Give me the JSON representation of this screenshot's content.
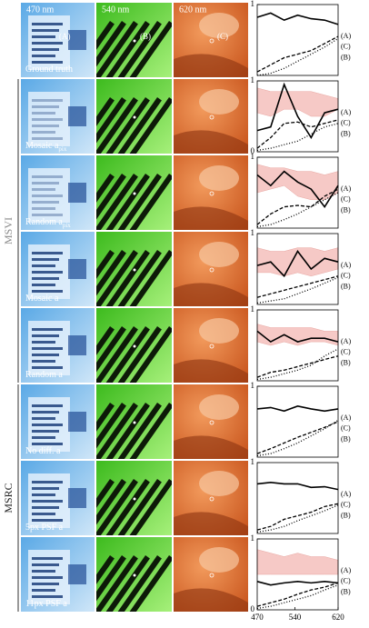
{
  "column_headers": [
    "470 nm",
    "540 nm",
    "620 nm"
  ],
  "image_labels": [
    "(A)",
    "(B)",
    "(C)"
  ],
  "groups": [
    {
      "label": "MSVI",
      "rows": [
        1,
        4
      ]
    },
    {
      "label": "MSRC",
      "rows": [
        5,
        7
      ]
    }
  ],
  "rows": [
    {
      "label": "Ground truth"
    },
    {
      "label": "Mosaic a",
      "sub": "pix"
    },
    {
      "label": "Random a",
      "sub": "pix"
    },
    {
      "label": "Mosaic a"
    },
    {
      "label": "Random a"
    },
    {
      "label": "No diff. a"
    },
    {
      "label": "5px PSF a"
    },
    {
      "label": "11px PSF a"
    }
  ],
  "chart_data": [
    {
      "type": "line",
      "x": [
        470,
        495,
        520,
        545,
        570,
        595,
        620
      ],
      "xlim": [
        470,
        620
      ],
      "ylim": [
        0,
        1
      ],
      "yticks": [
        1
      ],
      "series": [
        {
          "name": "(A)",
          "color": "#000000",
          "dash": "solid",
          "values": [
            0.82,
            0.88,
            0.78,
            0.85,
            0.8,
            0.78,
            0.72
          ]
        },
        {
          "name": "(C)",
          "color": "#000000",
          "dash": "dashed",
          "values": [
            0.05,
            0.15,
            0.25,
            0.3,
            0.35,
            0.45,
            0.55
          ]
        },
        {
          "name": "(B)",
          "color": "#000000",
          "dash": "dotted",
          "values": [
            0,
            0.03,
            0.1,
            0.2,
            0.3,
            0.4,
            0.52
          ]
        }
      ]
    },
    {
      "type": "line",
      "x": [
        470,
        495,
        520,
        545,
        570,
        595,
        620
      ],
      "xlim": [
        470,
        620
      ],
      "ylim": [
        0,
        1
      ],
      "yticks": [
        1,
        0
      ],
      "band": {
        "color": "#f6c9c6",
        "low": [
          0.55,
          0.5,
          0.6,
          0.6,
          0.5,
          0.5,
          0.6
        ],
        "high": [
          0.9,
          0.85,
          0.85,
          0.85,
          0.85,
          0.8,
          0.75
        ]
      },
      "series": [
        {
          "name": "(A)",
          "color": "#000000",
          "dash": "solid",
          "values": [
            0.3,
            0.35,
            0.95,
            0.5,
            0.2,
            0.55,
            0.6
          ]
        },
        {
          "name": "(C)",
          "color": "#000000",
          "dash": "dashed",
          "values": [
            0.05,
            0.2,
            0.4,
            0.42,
            0.35,
            0.4,
            0.45
          ]
        },
        {
          "name": "(B)",
          "color": "#000000",
          "dash": "dotted",
          "values": [
            0.02,
            0.05,
            0.1,
            0.15,
            0.25,
            0.35,
            0.4
          ]
        }
      ]
    },
    {
      "type": "line",
      "x": [
        470,
        495,
        520,
        545,
        570,
        595,
        620
      ],
      "xlim": [
        470,
        620
      ],
      "ylim": [
        0,
        1
      ],
      "yticks": [
        1
      ],
      "band": {
        "color": "#f6c9c6",
        "low": [
          0.5,
          0.55,
          0.6,
          0.45,
          0.4,
          0.4,
          0.5
        ],
        "high": [
          0.9,
          0.85,
          0.85,
          0.8,
          0.8,
          0.75,
          0.8
        ]
      },
      "series": [
        {
          "name": "(A)",
          "color": "#000000",
          "dash": "solid",
          "values": [
            0.75,
            0.6,
            0.8,
            0.65,
            0.55,
            0.3,
            0.6
          ]
        },
        {
          "name": "(C)",
          "color": "#000000",
          "dash": "dashed",
          "values": [
            0.05,
            0.2,
            0.3,
            0.32,
            0.3,
            0.45,
            0.55
          ]
        },
        {
          "name": "(B)",
          "color": "#000000",
          "dash": "dotted",
          "values": [
            0.02,
            0.05,
            0.12,
            0.2,
            0.3,
            0.4,
            0.5
          ]
        }
      ]
    },
    {
      "type": "line",
      "x": [
        470,
        495,
        520,
        545,
        570,
        595,
        620
      ],
      "xlim": [
        470,
        620
      ],
      "ylim": [
        0,
        1
      ],
      "yticks": [
        1
      ],
      "band": {
        "color": "#f6c9c6",
        "low": [
          0.45,
          0.45,
          0.4,
          0.45,
          0.4,
          0.45,
          0.5
        ],
        "high": [
          0.8,
          0.75,
          0.75,
          0.8,
          0.8,
          0.75,
          0.8
        ]
      },
      "series": [
        {
          "name": "(A)",
          "color": "#000000",
          "dash": "solid",
          "values": [
            0.55,
            0.6,
            0.4,
            0.75,
            0.5,
            0.65,
            0.6
          ]
        },
        {
          "name": "(C)",
          "color": "#000000",
          "dash": "dashed",
          "values": [
            0.1,
            0.15,
            0.2,
            0.25,
            0.3,
            0.35,
            0.4
          ]
        },
        {
          "name": "(B)",
          "color": "#000000",
          "dash": "dotted",
          "values": [
            0.02,
            0.05,
            0.08,
            0.15,
            0.22,
            0.3,
            0.38
          ]
        }
      ]
    },
    {
      "type": "line",
      "x": [
        470,
        495,
        520,
        545,
        570,
        595,
        620
      ],
      "xlim": [
        470,
        620
      ],
      "ylim": [
        0,
        1
      ],
      "yticks": [
        1
      ],
      "band": {
        "color": "#f6c9c6",
        "low": [
          0.55,
          0.5,
          0.55,
          0.5,
          0.55,
          0.55,
          0.5
        ],
        "high": [
          0.8,
          0.75,
          0.75,
          0.75,
          0.75,
          0.7,
          0.7
        ]
      },
      "series": [
        {
          "name": "(A)",
          "color": "#000000",
          "dash": "solid",
          "values": [
            0.7,
            0.55,
            0.65,
            0.55,
            0.6,
            0.6,
            0.55
          ]
        },
        {
          "name": "(C)",
          "color": "#000000",
          "dash": "dashed",
          "values": [
            0.05,
            0.12,
            0.15,
            0.2,
            0.25,
            0.3,
            0.35
          ]
        },
        {
          "name": "(B)",
          "color": "#000000",
          "dash": "dotted",
          "values": [
            0.02,
            0.05,
            0.1,
            0.15,
            0.22,
            0.35,
            0.45
          ]
        }
      ]
    },
    {
      "type": "line",
      "x": [
        470,
        495,
        520,
        545,
        570,
        595,
        620
      ],
      "xlim": [
        470,
        620
      ],
      "ylim": [
        0,
        1
      ],
      "yticks": [
        1
      ],
      "series": [
        {
          "name": "(A)",
          "color": "#000000",
          "dash": "solid",
          "values": [
            0.68,
            0.7,
            0.65,
            0.72,
            0.68,
            0.65,
            0.68
          ]
        },
        {
          "name": "(C)",
          "color": "#000000",
          "dash": "dashed",
          "values": [
            0.05,
            0.12,
            0.2,
            0.28,
            0.35,
            0.42,
            0.5
          ]
        },
        {
          "name": "(B)",
          "color": "#000000",
          "dash": "dotted",
          "values": [
            0.02,
            0.05,
            0.12,
            0.2,
            0.3,
            0.4,
            0.52
          ]
        }
      ]
    },
    {
      "type": "line",
      "x": [
        470,
        495,
        520,
        545,
        570,
        595,
        620
      ],
      "xlim": [
        470,
        620
      ],
      "ylim": [
        0,
        1
      ],
      "yticks": [
        1
      ],
      "series": [
        {
          "name": "(A)",
          "color": "#000000",
          "dash": "solid",
          "values": [
            0.7,
            0.72,
            0.7,
            0.7,
            0.65,
            0.66,
            0.62
          ]
        },
        {
          "name": "(C)",
          "color": "#000000",
          "dash": "dashed",
          "values": [
            0.05,
            0.1,
            0.2,
            0.25,
            0.3,
            0.38,
            0.42
          ]
        },
        {
          "name": "(B)",
          "color": "#000000",
          "dash": "dotted",
          "values": [
            0.02,
            0.05,
            0.1,
            0.18,
            0.25,
            0.32,
            0.4
          ]
        }
      ]
    },
    {
      "type": "line",
      "x": [
        470,
        495,
        520,
        545,
        570,
        595,
        620
      ],
      "xlim": [
        470,
        620
      ],
      "ylim": [
        0,
        1
      ],
      "yticks": [
        1,
        0
      ],
      "xticks": [
        470,
        540,
        620
      ],
      "band": {
        "color": "#f6c9c6",
        "low": [
          0.5,
          0.5,
          0.5,
          0.5,
          0.5,
          0.5,
          0.5
        ],
        "high": [
          0.85,
          0.8,
          0.75,
          0.8,
          0.75,
          0.75,
          0.7
        ]
      },
      "series": [
        {
          "name": "(A)",
          "color": "#000000",
          "dash": "solid",
          "values": [
            0.4,
            0.35,
            0.38,
            0.4,
            0.38,
            0.4,
            0.38
          ]
        },
        {
          "name": "(C)",
          "color": "#000000",
          "dash": "dashed",
          "values": [
            0.05,
            0.1,
            0.15,
            0.22,
            0.28,
            0.32,
            0.38
          ]
        },
        {
          "name": "(B)",
          "color": "#000000",
          "dash": "dotted",
          "values": [
            0.02,
            0.05,
            0.1,
            0.15,
            0.2,
            0.28,
            0.35
          ]
        }
      ]
    }
  ]
}
